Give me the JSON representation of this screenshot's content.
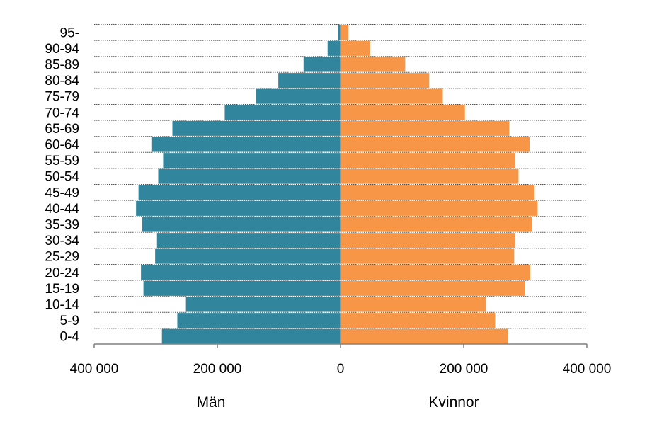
{
  "chart_data": {
    "type": "bar",
    "orientation": "horizontal",
    "subtype": "population-pyramid",
    "categories": [
      "0-4",
      "5-9",
      "10-14",
      "15-19",
      "20-24",
      "25-29",
      "30-34",
      "35-39",
      "40-44",
      "45-49",
      "50-54",
      "55-59",
      "60-64",
      "65-69",
      "70-74",
      "75-79",
      "80-84",
      "85-89",
      "90-94",
      "95-"
    ],
    "series": [
      {
        "name": "Män",
        "color": "#31859c",
        "values": [
          290000,
          265000,
          251000,
          320000,
          324000,
          301000,
          298000,
          322000,
          332000,
          328000,
          296000,
          288000,
          306000,
          273000,
          188000,
          137000,
          101000,
          60000,
          21000,
          4000
        ]
      },
      {
        "name": "Kvinnor",
        "color": "#f79646",
        "values": [
          272000,
          251000,
          236000,
          300000,
          308000,
          282000,
          284000,
          311000,
          320000,
          315000,
          289000,
          284000,
          307000,
          274000,
          202000,
          166000,
          144000,
          105000,
          48000,
          13000
        ]
      }
    ],
    "xlim": [
      -400000,
      400000
    ],
    "x_ticks": [
      -400000,
      -200000,
      0,
      200000,
      400000
    ],
    "x_tick_labels": [
      "400 000",
      "200 000",
      "0",
      "200 000",
      "400 000"
    ],
    "grid": "horizontal dotted",
    "legend": "none",
    "side_labels": [
      "Män",
      "Kvinnor"
    ]
  }
}
